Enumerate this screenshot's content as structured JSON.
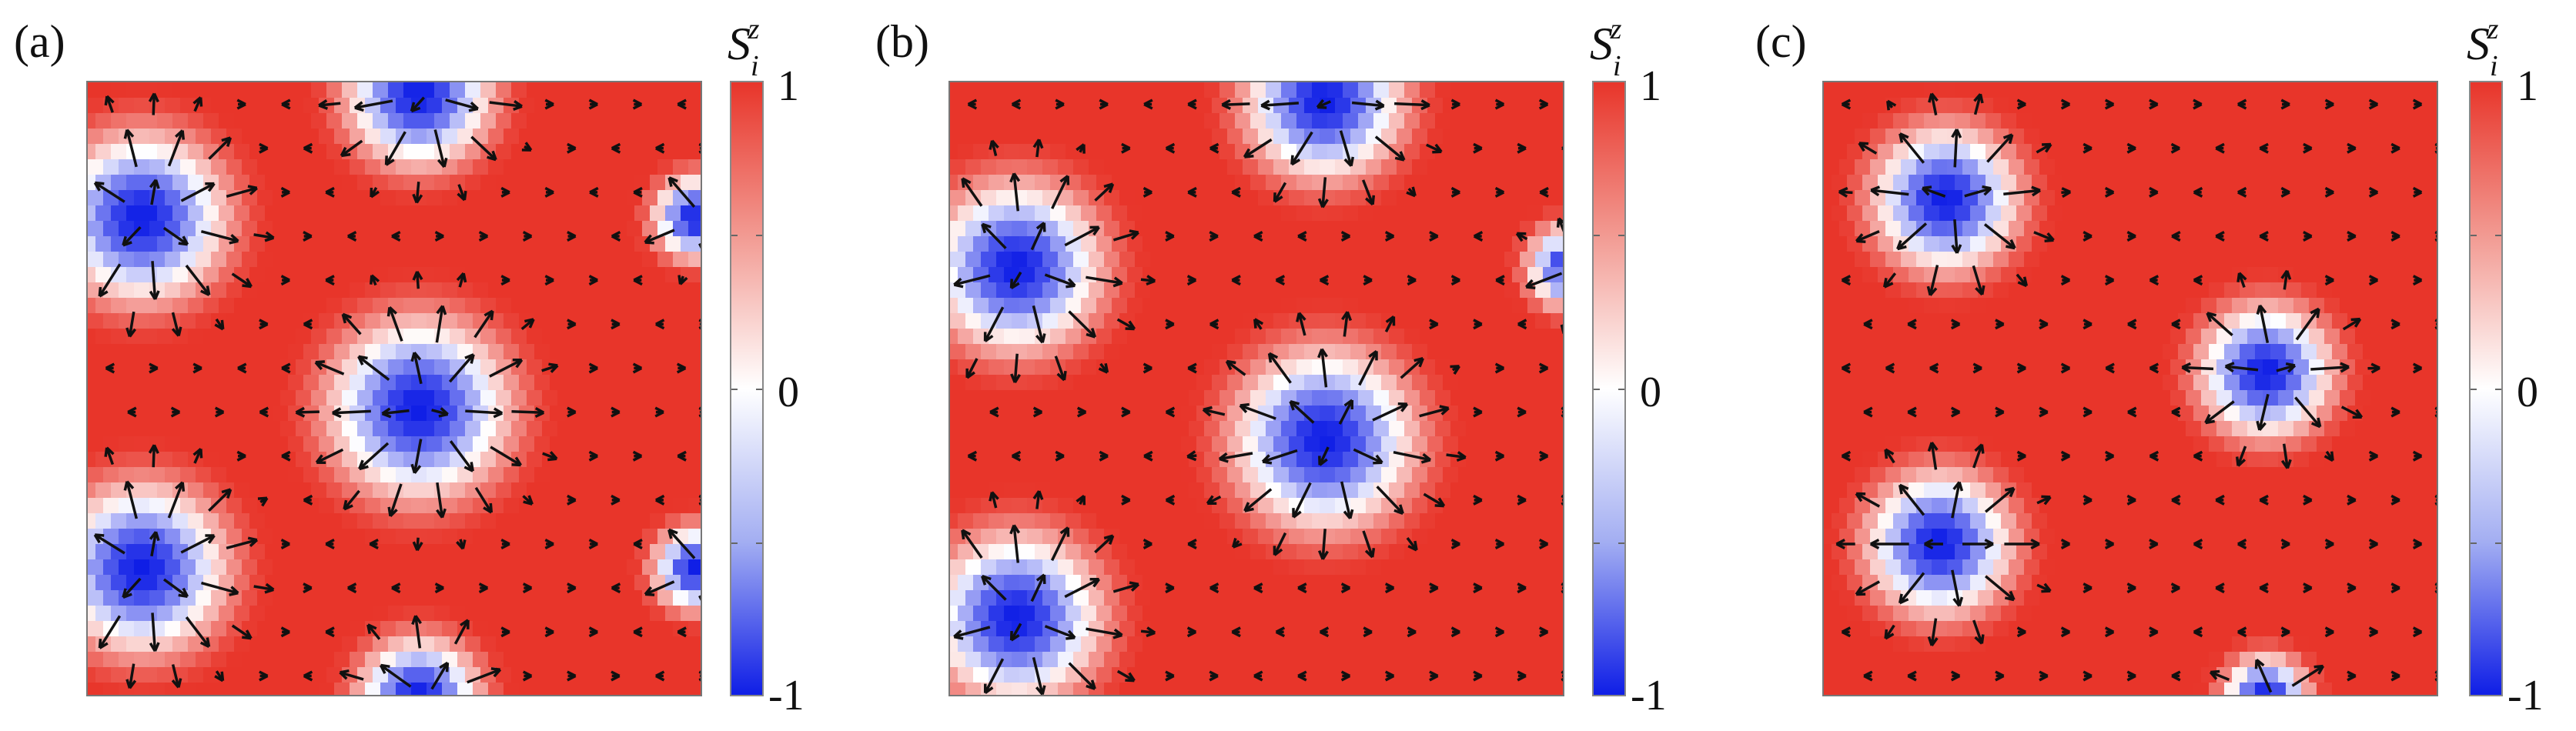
{
  "figure": {
    "colorbar": {
      "symbol": "S",
      "sub": "i",
      "sup": "z",
      "ticks": [
        "1",
        "0",
        "-1"
      ],
      "colors": {
        "max": "#e8352a",
        "mid": "#ffffff",
        "min": "#0f1ee6"
      }
    },
    "panels": [
      {
        "label": "(a)",
        "skyrmions": [
          [
            0.1,
            0.22,
            0.14
          ],
          [
            0.55,
            0.53,
            0.15
          ],
          [
            0.1,
            0.79,
            0.14
          ],
          [
            0.55,
            0.02,
            0.12
          ],
          [
            1.0,
            0.22,
            0.07
          ],
          [
            1.0,
            0.79,
            0.07
          ],
          [
            0.55,
            1.0,
            0.1
          ]
        ]
      },
      {
        "label": "(b)",
        "skyrmions": [
          [
            0.12,
            0.3,
            0.14
          ],
          [
            0.62,
            0.58,
            0.15
          ],
          [
            0.12,
            0.87,
            0.14
          ],
          [
            0.62,
            0.03,
            0.13
          ],
          [
            1.02,
            0.3,
            0.07
          ]
        ]
      },
      {
        "label": "(c)",
        "skyrmions": [
          [
            0.21,
            0.19,
            0.12
          ],
          [
            0.73,
            0.47,
            0.11
          ],
          [
            0.2,
            0.75,
            0.12
          ],
          [
            0.73,
            1.0,
            0.07
          ]
        ]
      }
    ]
  }
}
